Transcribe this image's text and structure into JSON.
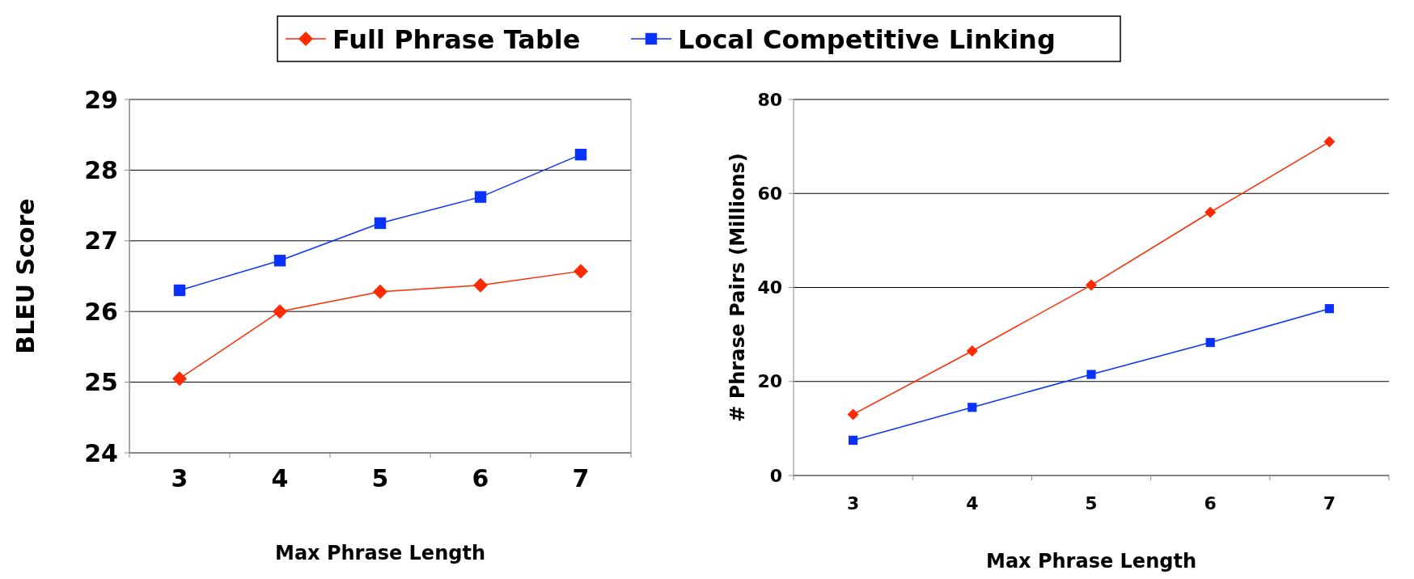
{
  "chart_data": [
    {
      "type": "line",
      "ylabel": "BLEU Score",
      "xlabel": "Max Phrase Length",
      "categories": [
        "3",
        "4",
        "5",
        "6",
        "7"
      ],
      "ylim": [
        24,
        29
      ],
      "yticks": [
        24,
        25,
        26,
        27,
        28,
        29
      ],
      "grid": "y",
      "legend": "top",
      "series": [
        {
          "name": "Full Phrase Table",
          "color": "#ff2a00",
          "marker": "diamond",
          "values": [
            25.05,
            26.0,
            26.28,
            26.37,
            26.57
          ]
        },
        {
          "name": "Local Competitive Linking",
          "color": "#0a32ff",
          "marker": "square",
          "values": [
            26.3,
            26.72,
            27.25,
            27.62,
            28.22
          ]
        }
      ]
    },
    {
      "type": "line",
      "ylabel": "# Phrase Pairs (Millions)",
      "xlabel": "Max Phrase Length",
      "categories": [
        "3",
        "4",
        "5",
        "6",
        "7"
      ],
      "ylim": [
        0,
        80
      ],
      "yticks": [
        0,
        20,
        40,
        60,
        80
      ],
      "grid": "y",
      "series": [
        {
          "color": "#ff2a00",
          "marker": "diamond",
          "values": [
            13,
            26.5,
            40.5,
            56,
            71
          ]
        },
        {
          "color": "#0a32ff",
          "marker": "square",
          "values": [
            7.5,
            14.5,
            21.5,
            28.3,
            35.5
          ]
        }
      ]
    }
  ]
}
